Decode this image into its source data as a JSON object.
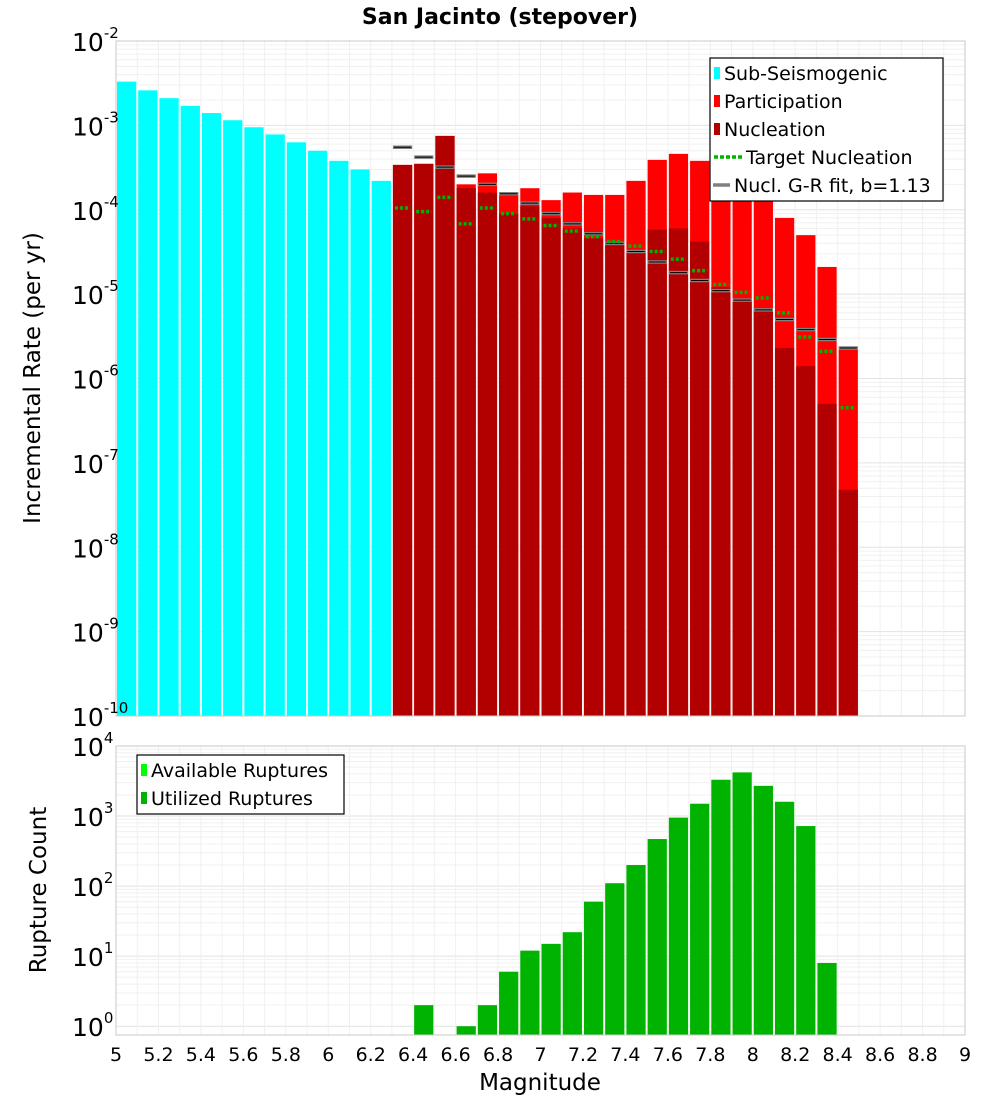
{
  "chart_data": [
    {
      "type": "bar",
      "title": "San Jacinto (stepover)",
      "ylabel": "Incremental Rate (per yr)",
      "xlabel": "",
      "xlim": [
        5,
        9
      ],
      "ylim": [
        1e-10,
        0.01
      ],
      "yscale": "log",
      "bin_width": 0.1,
      "grid": true,
      "legend": {
        "placement": "top-right",
        "entries": [
          {
            "label": "Sub-Seismogenic",
            "color": "#00ffff",
            "kind": "bar"
          },
          {
            "label": "Participation",
            "color": "#ff0000",
            "kind": "bar"
          },
          {
            "label": "Nucleation",
            "color": "#b20000",
            "kind": "bar"
          },
          {
            "label": "Target Nucleation",
            "color": "#00b300",
            "kind": "dotted-line"
          },
          {
            "label": "Nucl. G-R fit, b=1.13",
            "color": "#808080",
            "kind": "line"
          }
        ]
      },
      "series": [
        {
          "name": "Sub-Seismogenic",
          "color": "#00ffff",
          "x": [
            5.05,
            5.15,
            5.25,
            5.35,
            5.45,
            5.55,
            5.65,
            5.75,
            5.85,
            5.95,
            6.05,
            6.15,
            6.25
          ],
          "values": [
            0.0033,
            0.0026,
            0.0021,
            0.0017,
            0.0014,
            0.00115,
            0.00095,
            0.00078,
            0.00063,
            0.0005,
            0.00038,
            0.0003,
            0.00022
          ]
        },
        {
          "name": "Participation",
          "color": "#ff0000",
          "x": [
            6.35,
            6.45,
            6.55,
            6.65,
            6.75,
            6.85,
            6.95,
            7.05,
            7.15,
            7.25,
            7.35,
            7.45,
            7.55,
            7.65,
            7.75,
            7.85,
            7.95,
            8.05,
            8.15,
            8.25,
            8.35,
            8.45
          ],
          "values": [
            0.00034,
            0.00035,
            0.00075,
            0.0002,
            0.00027,
            0.00016,
            0.00018,
            0.00013,
            0.00016,
            0.00015,
            0.00015,
            0.00022,
            0.00039,
            0.00046,
            0.00038,
            0.00025,
            0.00017,
            0.00019,
            8e-05,
            5e-05,
            2.1e-05,
            2.2e-06
          ]
        },
        {
          "name": "Nucleation",
          "color": "#b20000",
          "x": [
            6.35,
            6.45,
            6.55,
            6.65,
            6.75,
            6.85,
            6.95,
            7.05,
            7.15,
            7.25,
            7.35,
            7.45,
            7.55,
            7.65,
            7.75,
            7.85,
            7.95,
            8.05,
            8.15,
            8.25,
            8.35,
            8.45
          ],
          "values": [
            0.00034,
            0.00035,
            0.00075,
            0.00018,
            0.00016,
            9e-05,
            0.00011,
            8e-05,
            6e-05,
            4.6e-05,
            3.8e-05,
            3.2e-05,
            5.8e-05,
            6e-05,
            4.2e-05,
            1.2e-05,
            8.5e-06,
            6.5e-06,
            2.3e-06,
            1.4e-06,
            5e-07,
            4.8e-08
          ]
        },
        {
          "name": "Target Nucleation",
          "color": "#00b300",
          "x": [
            6.35,
            6.45,
            6.55,
            6.65,
            6.75,
            6.85,
            6.95,
            7.05,
            7.15,
            7.25,
            7.35,
            7.45,
            7.55,
            7.65,
            7.75,
            7.85,
            7.95,
            8.05,
            8.15,
            8.25,
            8.35,
            8.45
          ],
          "values": [
            0.000105,
            9.5e-05,
            0.00014,
            6.8e-05,
            0.000105,
            9e-05,
            7.8e-05,
            6.5e-05,
            5.6e-05,
            4.8e-05,
            4.2e-05,
            3.7e-05,
            3.2e-05,
            2.6e-05,
            1.9e-05,
            1.3e-05,
            1.05e-05,
            9e-06,
            6e-06,
            3.1e-06,
            2.1e-06,
            4.5e-07
          ]
        },
        {
          "name": "Nucl. G-R fit, b=1.13",
          "color": "#808080",
          "x": [
            6.35,
            6.45,
            6.55,
            6.65,
            6.75,
            6.85,
            6.95,
            7.05,
            7.15,
            7.25,
            7.35,
            7.45,
            7.55,
            7.65,
            7.75,
            7.85,
            7.95,
            8.05,
            8.15,
            8.25,
            8.35,
            8.45
          ],
          "values": [
            0.00055,
            0.00042,
            0.00032,
            0.00025,
            0.0002,
            0.000155,
            0.00012,
            9e-05,
            6.8e-05,
            5.2e-05,
            4e-05,
            3.2e-05,
            2.4e-05,
            1.8e-05,
            1.45e-05,
            1.1e-05,
            8.5e-06,
            6.5e-06,
            5e-06,
            3.8e-06,
            2.9e-06,
            2.3e-06
          ]
        }
      ]
    },
    {
      "type": "bar",
      "title": "",
      "ylabel": "Rupture Count",
      "xlabel": "Magnitude",
      "xlim": [
        5,
        9
      ],
      "ylim": [
        0.75,
        10000
      ],
      "yscale": "log",
      "bin_width": 0.1,
      "grid": true,
      "xticks": [
        "5",
        "5.2",
        "5.4",
        "5.6",
        "5.8",
        "6",
        "6.2",
        "6.4",
        "6.6",
        "6.8",
        "7",
        "7.2",
        "7.4",
        "7.6",
        "7.8",
        "8",
        "8.2",
        "8.4",
        "8.6",
        "8.8",
        "9"
      ],
      "legend": {
        "placement": "top-left",
        "entries": [
          {
            "label": "Available Ruptures",
            "color": "#00ff00",
            "kind": "bar"
          },
          {
            "label": "Utilized Ruptures",
            "color": "#00b300",
            "kind": "bar"
          }
        ]
      },
      "series": [
        {
          "name": "Utilized Ruptures",
          "color": "#00b300",
          "x": [
            6.45,
            6.65,
            6.75,
            6.85,
            6.95,
            7.05,
            7.15,
            7.25,
            7.35,
            7.45,
            7.55,
            7.65,
            7.75,
            7.85,
            7.95,
            8.05,
            8.15,
            8.25,
            8.35
          ],
          "values": [
            2,
            1,
            2,
            6,
            12,
            15,
            22,
            60,
            110,
            200,
            470,
            950,
            1500,
            3300,
            4200,
            2700,
            1600,
            720,
            8
          ]
        }
      ]
    }
  ]
}
